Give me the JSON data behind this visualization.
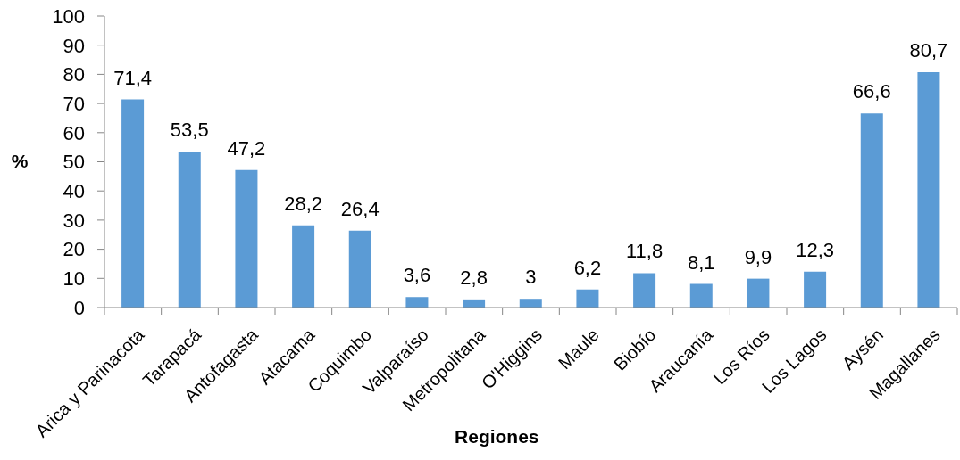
{
  "chart_data": {
    "type": "bar",
    "xlabel": "Regiones",
    "ylabel": "%",
    "categories": [
      "Arica y Parinacota",
      "Tarapacá",
      "Antofagasta",
      "Atacama",
      "Coquimbo",
      "Valparaíso",
      "Metropolitana",
      "O'Higgins",
      "Maule",
      "Biobío",
      "Araucanía",
      "Los Ríos",
      "Los Lagos",
      "Aysén",
      "Magallanes"
    ],
    "values": [
      71.4,
      53.5,
      47.2,
      28.2,
      26.4,
      3.6,
      2.8,
      3,
      6.2,
      11.8,
      8.1,
      9.9,
      12.3,
      66.6,
      80.7
    ],
    "value_labels": [
      "71,4",
      "53,5",
      "47,2",
      "28,2",
      "26,4",
      "3,6",
      "2,8",
      "3",
      "6,2",
      "11,8",
      "8,1",
      "9,9",
      "12,3",
      "66,6",
      "80,7"
    ],
    "color": "#5b9bd5",
    "ylim": [
      0,
      100
    ],
    "yticks": [
      0,
      10,
      20,
      30,
      40,
      50,
      60,
      70,
      80,
      90,
      100
    ],
    "grid": false
  }
}
